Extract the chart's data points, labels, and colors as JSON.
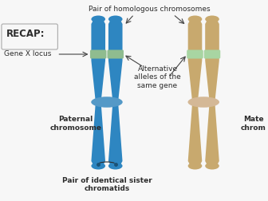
{
  "bg_color": "#f7f7f7",
  "blue_color": "#2e86c1",
  "blue_dark": "#1a5276",
  "blue_cent": "#5499c7",
  "tan_color": "#c8a96e",
  "tan_dark": "#a07840",
  "tan_cent": "#d4b896",
  "band_blue": "#8fbc8f",
  "band_tan": "#a8d5a2",
  "text_color": "#2c2c2c",
  "arrow_color": "#444444",
  "recap_text": "RECAP:",
  "gene_locus_text": "Gene X locus",
  "homologous_text": "Pair of homologous chromosomes",
  "alternative_text": "Alternative\nalleles of the\nsame gene",
  "paternal_text": "Paternal\nchromosome",
  "maternal_text": "Mate\nchrom",
  "sister_text": "Pair of identical sister\nchromatids"
}
